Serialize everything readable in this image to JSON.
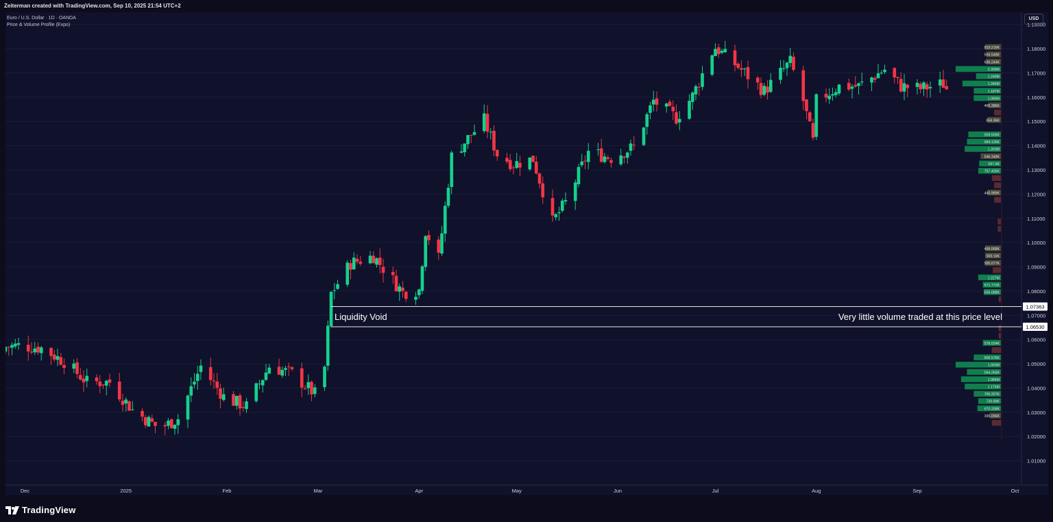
{
  "header": {
    "attribution": "Zeiterman created with TradingView.com, Sep 10, 2025 21:54 UTC+2"
  },
  "legend": {
    "symbol_line": "Euro / U.S. Dollar · 1D · OANDA",
    "indicator_line": "Price & Volume Profile (Expo)"
  },
  "currency": "USD",
  "footer": {
    "brand": "TradingView"
  },
  "colors": {
    "background": "#10112b",
    "up": "#15d18c",
    "down": "#f23645",
    "grid": "#1b1c3a",
    "text": "#d1d4dc",
    "profile_up": "#0f7f4d",
    "profile_down": "#5a2a33",
    "profile_neutral": "#4a4a3a"
  },
  "chart_data": {
    "type": "candlestick",
    "symbol": "EURUSD",
    "interval": "1D",
    "ylim": [
      1.0,
      1.195
    ],
    "y_ticks": [
      "1.01000",
      "1.02000",
      "1.03000",
      "1.04000",
      "1.05000",
      "1.06000",
      "1.07000",
      "1.08000",
      "1.09000",
      "1.10000",
      "1.11000",
      "1.12000",
      "1.13000",
      "1.14000",
      "1.15000",
      "1.16000",
      "1.17000",
      "1.18000",
      "1.19000"
    ],
    "x_ticks": [
      {
        "label": "Dec",
        "date": "2024-12-01"
      },
      {
        "label": "2025",
        "date": "2025-01-01"
      },
      {
        "label": "Feb",
        "date": "2025-02-01"
      },
      {
        "label": "Mar",
        "date": "2025-03-01"
      },
      {
        "label": "Apr",
        "date": "2025-04-01"
      },
      {
        "label": "May",
        "date": "2025-05-01"
      },
      {
        "label": "Jun",
        "date": "2025-06-01"
      },
      {
        "label": "Jul",
        "date": "2025-07-01"
      },
      {
        "label": "Aug",
        "date": "2025-08-01"
      },
      {
        "label": "Sep",
        "date": "2025-09-01"
      },
      {
        "label": "Oct",
        "date": "2025-10-01"
      }
    ],
    "close_anchors": [
      [
        "2024-11-25",
        1.057
      ],
      [
        "2024-11-29",
        1.0575
      ],
      [
        "2024-12-06",
        1.0565
      ],
      [
        "2024-12-13",
        1.051
      ],
      [
        "2024-12-20",
        1.0425
      ],
      [
        "2024-12-27",
        1.0425
      ],
      [
        "2025-01-03",
        1.031
      ],
      [
        "2025-01-10",
        1.0245
      ],
      [
        "2025-01-13",
        1.0245
      ],
      [
        "2025-01-17",
        1.0275
      ],
      [
        "2025-01-24",
        1.049
      ],
      [
        "2025-01-31",
        1.0365
      ],
      [
        "2025-02-03",
        1.0345
      ],
      [
        "2025-02-07",
        1.0325
      ],
      [
        "2025-02-14",
        1.049
      ],
      [
        "2025-02-21",
        1.046
      ],
      [
        "2025-02-28",
        1.0375
      ],
      [
        "2025-03-03",
        1.0485
      ],
      [
        "2025-03-05",
        1.079
      ],
      [
        "2025-03-11",
        1.0915
      ],
      [
        "2025-03-18",
        1.0945
      ],
      [
        "2025-03-27",
        1.0795
      ],
      [
        "2025-04-01",
        1.0805
      ],
      [
        "2025-04-03",
        1.105
      ],
      [
        "2025-04-07",
        1.0935
      ],
      [
        "2025-04-11",
        1.1355
      ],
      [
        "2025-04-21",
        1.1505
      ],
      [
        "2025-04-25",
        1.1365
      ],
      [
        "2025-04-30",
        1.1325
      ],
      [
        "2025-05-06",
        1.1345
      ],
      [
        "2025-05-12",
        1.1085
      ],
      [
        "2025-05-16",
        1.1165
      ],
      [
        "2025-05-23",
        1.1375
      ],
      [
        "2025-05-30",
        1.135
      ],
      [
        "2025-06-06",
        1.1395
      ],
      [
        "2025-06-12",
        1.1585
      ],
      [
        "2025-06-19",
        1.1515
      ],
      [
        "2025-06-24",
        1.1605
      ],
      [
        "2025-06-30",
        1.1785
      ],
      [
        "2025-07-01",
        1.1805
      ],
      [
        "2025-07-08",
        1.1725
      ],
      [
        "2025-07-16",
        1.1625
      ],
      [
        "2025-07-24",
        1.1745
      ],
      [
        "2025-07-28",
        1.1585
      ],
      [
        "2025-07-31",
        1.1415
      ],
      [
        "2025-08-01",
        1.1585
      ],
      [
        "2025-08-08",
        1.1645
      ],
      [
        "2025-08-14",
        1.1645
      ],
      [
        "2025-08-22",
        1.1715
      ],
      [
        "2025-08-27",
        1.1645
      ],
      [
        "2025-09-02",
        1.1635
      ],
      [
        "2025-09-09",
        1.1655
      ],
      [
        "2025-09-10",
        1.1635
      ]
    ],
    "annotations": {
      "left_label": "Liquidity Void",
      "right_label": "Very little volume traded at this price level",
      "upper_price": 1.07363,
      "lower_price": 1.0653,
      "upper_price_label": "1.07363",
      "lower_price_label": "1.06530"
    },
    "volume_profile": [
      {
        "price": 1.1805,
        "label": "819.216K",
        "size": 0.35,
        "kind": "neutral"
      },
      {
        "price": 1.1775,
        "label": "593.548K",
        "size": 0.32,
        "kind": "neutral"
      },
      {
        "price": 1.1745,
        "label": "636.244K",
        "size": 0.33,
        "kind": "neutral"
      },
      {
        "price": 1.1715,
        "label": "2.358M",
        "size": 1.0,
        "kind": "up"
      },
      {
        "price": 1.1685,
        "label": "1.249M",
        "size": 0.55,
        "kind": "up"
      },
      {
        "price": 1.1655,
        "label": "1.345M",
        "size": 0.85,
        "kind": "up"
      },
      {
        "price": 1.1625,
        "label": "1.187M",
        "size": 0.6,
        "kind": "up"
      },
      {
        "price": 1.1595,
        "label": "1.065M",
        "size": 0.6,
        "kind": "up"
      },
      {
        "price": 1.1565,
        "label": "495.386K",
        "size": 0.28,
        "kind": "neutral"
      },
      {
        "price": 1.1535,
        "label": "",
        "size": 0.15,
        "kind": "down"
      },
      {
        "price": 1.1505,
        "label": "656.36K",
        "size": 0.3,
        "kind": "neutral"
      },
      {
        "price": 1.1445,
        "label": "939.505K",
        "size": 0.72,
        "kind": "up"
      },
      {
        "price": 1.1415,
        "label": "994.126K",
        "size": 0.75,
        "kind": "up"
      },
      {
        "price": 1.1385,
        "label": "1.263M",
        "size": 0.8,
        "kind": "up"
      },
      {
        "price": 1.1355,
        "label": "546.348K",
        "size": 0.45,
        "kind": "neutral"
      },
      {
        "price": 1.1325,
        "label": "597.9K",
        "size": 0.48,
        "kind": "up"
      },
      {
        "price": 1.1295,
        "label": "757.405K",
        "size": 0.5,
        "kind": "up"
      },
      {
        "price": 1.1265,
        "label": "",
        "size": 0.2,
        "kind": "down"
      },
      {
        "price": 1.1235,
        "label": "",
        "size": 0.15,
        "kind": "down"
      },
      {
        "price": 1.1205,
        "label": "445.989K",
        "size": 0.3,
        "kind": "neutral"
      },
      {
        "price": 1.1175,
        "label": "",
        "size": 0.15,
        "kind": "down"
      },
      {
        "price": 1.1085,
        "label": "",
        "size": 0.07,
        "kind": "down"
      },
      {
        "price": 1.1055,
        "label": "",
        "size": 0.07,
        "kind": "down"
      },
      {
        "price": 1.0975,
        "label": "499.068K",
        "size": 0.35,
        "kind": "neutral"
      },
      {
        "price": 1.0945,
        "label": "500.16K",
        "size": 0.35,
        "kind": "neutral"
      },
      {
        "price": 1.0915,
        "label": "505.077K",
        "size": 0.35,
        "kind": "neutral"
      },
      {
        "price": 1.0885,
        "label": "",
        "size": 0.18,
        "kind": "down"
      },
      {
        "price": 1.0855,
        "label": "1.227M",
        "size": 0.5,
        "kind": "up"
      },
      {
        "price": 1.0825,
        "label": "671.772K",
        "size": 0.4,
        "kind": "up"
      },
      {
        "price": 1.0795,
        "label": "556.088K",
        "size": 0.38,
        "kind": "up"
      },
      {
        "price": 1.0765,
        "label": "",
        "size": 0.05,
        "kind": "down"
      },
      {
        "price": 1.0645,
        "label": "",
        "size": 0.05,
        "kind": "down"
      },
      {
        "price": 1.0615,
        "label": "",
        "size": 0.05,
        "kind": "down"
      },
      {
        "price": 1.0585,
        "label": "578.024K",
        "size": 0.4,
        "kind": "up"
      },
      {
        "price": 1.0555,
        "label": "",
        "size": 0.2,
        "kind": "down"
      },
      {
        "price": 1.0525,
        "label": "606.576K",
        "size": 0.6,
        "kind": "up"
      },
      {
        "price": 1.0495,
        "label": "1.003M",
        "size": 1.0,
        "kind": "up"
      },
      {
        "price": 1.0465,
        "label": "564.265K",
        "size": 0.75,
        "kind": "up"
      },
      {
        "price": 1.0435,
        "label": "1.084M",
        "size": 0.88,
        "kind": "up"
      },
      {
        "price": 1.0405,
        "label": "1.174M",
        "size": 0.8,
        "kind": "up"
      },
      {
        "price": 1.0375,
        "label": "705.327K",
        "size": 0.6,
        "kind": "up"
      },
      {
        "price": 1.0345,
        "label": "730.99K",
        "size": 0.5,
        "kind": "up"
      },
      {
        "price": 1.0315,
        "label": "670.338K",
        "size": 0.52,
        "kind": "up"
      },
      {
        "price": 1.0285,
        "label": "335.056K",
        "size": 0.25,
        "kind": "neutral"
      },
      {
        "price": 1.0255,
        "label": "",
        "size": 0.2,
        "kind": "down"
      }
    ]
  }
}
